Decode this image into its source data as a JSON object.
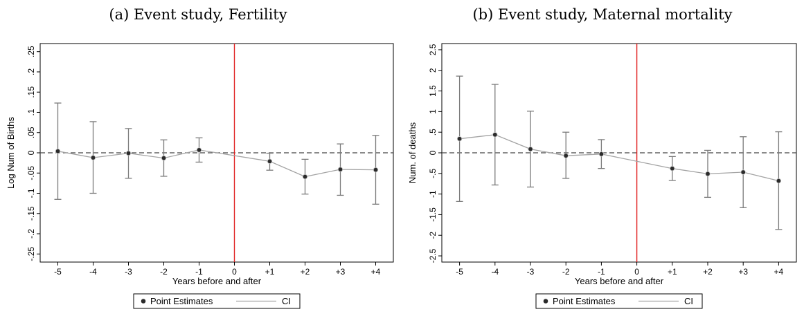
{
  "chart_data": [
    {
      "type": "scatter",
      "title": "(a) Event study, Fertility",
      "xlabel": "Years before and after",
      "ylabel": "Log Num of Births",
      "x_positions": [
        -5,
        -4,
        -3,
        -2,
        -1,
        0,
        1,
        2,
        3,
        4
      ],
      "x_tick_labels": [
        "-5",
        "-4",
        "-3",
        "-2",
        "-1",
        "0",
        "+1",
        "+2",
        "+3",
        "+4"
      ],
      "xlim": [
        -5.5,
        4.5
      ],
      "y_ticks": [
        -0.25,
        -0.2,
        -0.15,
        -0.1,
        -0.05,
        0,
        0.05,
        0.1,
        0.15,
        0.2,
        0.25
      ],
      "y_tick_labels": [
        "-.25",
        "-.2",
        "-.15",
        "-.1",
        "-.05",
        "0",
        ".05",
        ".1",
        ".15",
        ".2",
        ".25"
      ],
      "ylim": [
        -0.27,
        0.27
      ],
      "event_line_x": 0,
      "reference_line_y": 0,
      "x": [
        -5,
        -4,
        -3,
        -2,
        -1,
        1,
        2,
        3,
        4
      ],
      "estimate": [
        0.004,
        -0.012,
        -0.001,
        -0.013,
        0.007,
        -0.021,
        -0.059,
        -0.041,
        -0.042
      ],
      "ci_low": [
        -0.115,
        -0.1,
        -0.063,
        -0.058,
        -0.023,
        -0.043,
        -0.102,
        -0.105,
        -0.127
      ],
      "ci_high": [
        0.123,
        0.077,
        0.06,
        0.032,
        0.037,
        -0.001,
        -0.016,
        0.022,
        0.043
      ],
      "legend": [
        "Point Estimates",
        "CI"
      ],
      "legend_position": "bottom",
      "grid": false,
      "colors": {
        "estimate": "#2b2b2b",
        "ci": "#7a7a7a",
        "connector": "#a3a3a3",
        "event_line": "#e02020",
        "reference_line": "#444444"
      }
    },
    {
      "type": "scatter",
      "title": "(b) Event study, Maternal mortality",
      "xlabel": "Years before and after",
      "ylabel": "Num. of deaths",
      "x_positions": [
        -5,
        -4,
        -3,
        -2,
        -1,
        0,
        1,
        2,
        3,
        4
      ],
      "x_tick_labels": [
        "-5",
        "-4",
        "-3",
        "-2",
        "-1",
        "0",
        "+1",
        "+2",
        "+3",
        "+4"
      ],
      "xlim": [
        -5.5,
        4.5
      ],
      "y_ticks": [
        -2.5,
        -2,
        -1.5,
        -1,
        -0.5,
        0,
        0.5,
        1,
        1.5,
        2,
        2.5
      ],
      "y_tick_labels": [
        "-2.5",
        "-2",
        "-1.5",
        "-1",
        "-.5",
        "0",
        ".5",
        "1",
        "1.5",
        "2",
        "2.5"
      ],
      "ylim": [
        -2.65,
        2.65
      ],
      "event_line_x": 0,
      "reference_line_y": 0,
      "x": [
        -5,
        -4,
        -3,
        -2,
        -1,
        1,
        2,
        3,
        4
      ],
      "estimate": [
        0.34,
        0.44,
        0.09,
        -0.07,
        -0.03,
        -0.38,
        -0.51,
        -0.47,
        -0.68
      ],
      "ci_low": [
        -1.18,
        -0.78,
        -0.83,
        -0.62,
        -0.38,
        -0.67,
        -1.08,
        -1.33,
        -1.86
      ],
      "ci_high": [
        1.86,
        1.66,
        1.01,
        0.5,
        0.32,
        -0.09,
        0.06,
        0.39,
        0.51
      ],
      "legend": [
        "Point Estimates",
        "CI"
      ],
      "legend_position": "bottom",
      "grid": false,
      "colors": {
        "estimate": "#2b2b2b",
        "ci": "#7a7a7a",
        "connector": "#a3a3a3",
        "event_line": "#e02020",
        "reference_line": "#444444"
      }
    }
  ]
}
